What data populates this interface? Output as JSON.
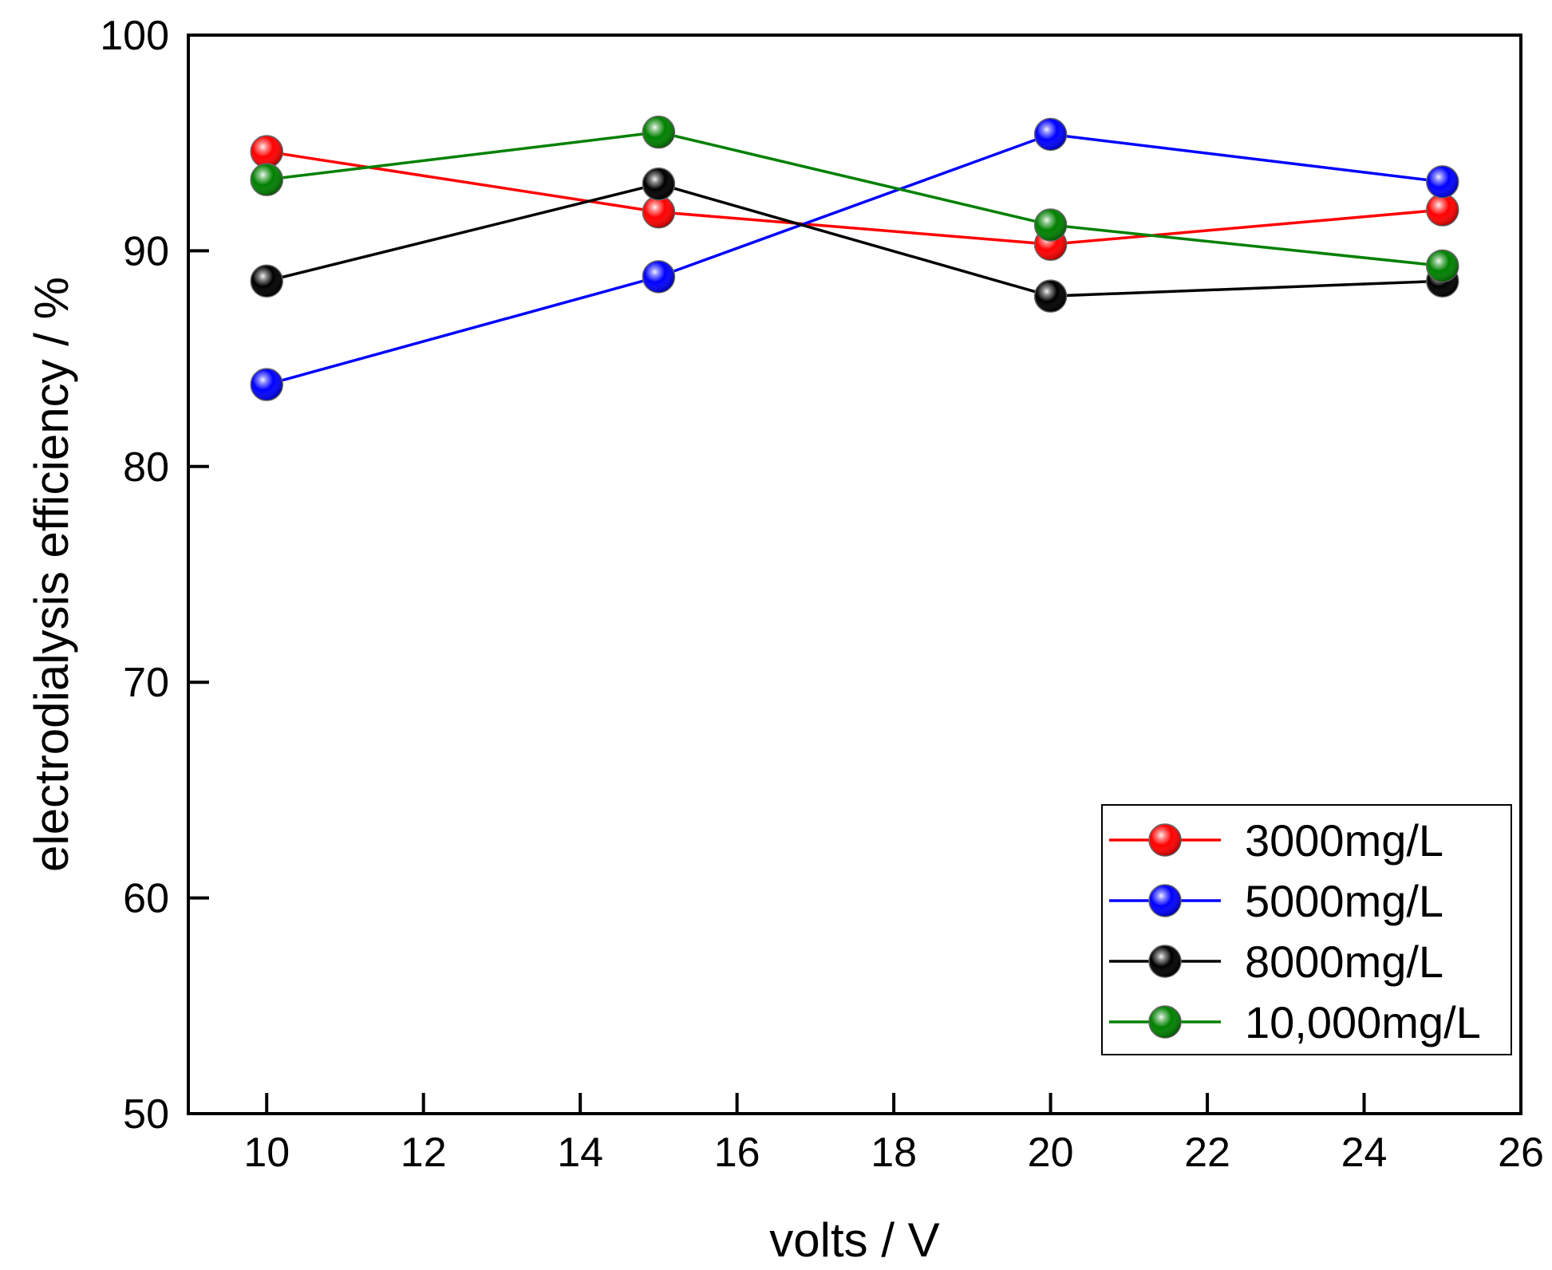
{
  "chart_data": {
    "type": "line",
    "xlabel": "volts / V",
    "ylabel": "electrodialysis efficiency / %",
    "xlim": [
      9,
      26
    ],
    "ylim": [
      50,
      100
    ],
    "xticks": [
      10,
      12,
      14,
      16,
      18,
      20,
      22,
      24,
      26
    ],
    "yticks": [
      50,
      60,
      70,
      80,
      90,
      100
    ],
    "grid": false,
    "legend_position": "bottom-right",
    "x": [
      10,
      15,
      20,
      25
    ],
    "series": [
      {
        "name": "3000mg/L",
        "color": "#ff0000",
        "values": [
          94.6,
          91.8,
          90.3,
          91.9
        ]
      },
      {
        "name": "5000mg/L",
        "color": "#0000ff",
        "values": [
          83.8,
          88.8,
          95.4,
          93.2
        ]
      },
      {
        "name": "8000mg/L",
        "color": "#000000",
        "values": [
          88.6,
          93.1,
          87.9,
          88.6
        ]
      },
      {
        "name": "10,000mg/L",
        "color": "#008000",
        "values": [
          93.3,
          95.5,
          91.2,
          89.3
        ]
      }
    ]
  }
}
